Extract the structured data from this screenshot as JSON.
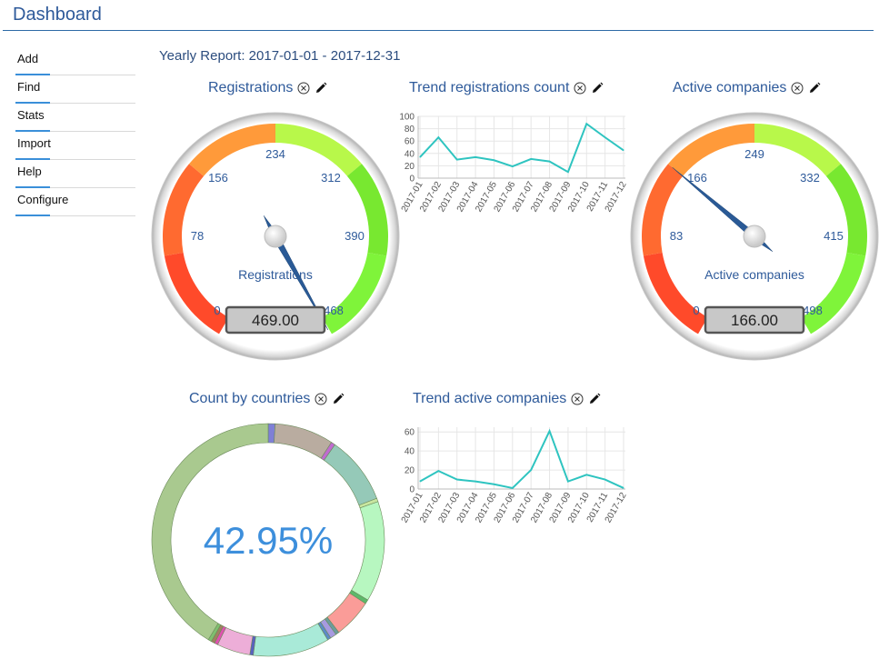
{
  "header": {
    "title": "Dashboard"
  },
  "sidebar": {
    "items": [
      {
        "label": "Add"
      },
      {
        "label": "Find"
      },
      {
        "label": "Stats"
      },
      {
        "label": "Import"
      },
      {
        "label": "Help"
      },
      {
        "label": "Configure"
      }
    ]
  },
  "report": {
    "title": "Yearly Report: 2017-01-01 - 2017-12-31"
  },
  "widgets": {
    "registrations": {
      "title": "Registrations",
      "gauge_label": "Registrations"
    },
    "trend_registrations": {
      "title": "Trend registrations count"
    },
    "active_companies": {
      "title": "Active companies",
      "gauge_label": "Active companies"
    },
    "count_by_countries": {
      "title": "Count by countries"
    },
    "trend_active": {
      "title": "Trend active companies"
    }
  },
  "icons": {
    "close": "close-circle-icon",
    "edit": "pencil-icon"
  },
  "colors": {
    "accent": "#3a8fd9",
    "trend_line": "#2ec4c0",
    "donut_text": "#3d8fdc"
  },
  "chart_data": [
    {
      "id": "registrations-gauge",
      "type": "gauge",
      "value": 469,
      "value_display": "469.00",
      "min": 0,
      "max": 468,
      "tick_labels": [
        "0",
        "78",
        "156",
        "234",
        "312",
        "390",
        "468"
      ],
      "label": "Registrations"
    },
    {
      "id": "trend-registrations",
      "type": "line",
      "x": [
        "2017-01",
        "2017-02",
        "2017-03",
        "2017-04",
        "2017-05",
        "2017-06",
        "2017-07",
        "2017-08",
        "2017-09",
        "2017-10",
        "2017-11",
        "2017-12"
      ],
      "y": [
        34,
        66,
        30,
        34,
        29,
        19,
        31,
        27,
        10,
        88,
        66,
        45
      ],
      "ylim": [
        0,
        100
      ],
      "yticks": [
        0,
        20,
        40,
        60,
        80,
        100
      ]
    },
    {
      "id": "active-companies-gauge",
      "type": "gauge",
      "value": 166,
      "value_display": "166.00",
      "min": 0,
      "max": 498,
      "tick_labels": [
        "0",
        "83",
        "166",
        "249",
        "332",
        "415",
        "498"
      ],
      "label": "Active companies"
    },
    {
      "id": "count-by-countries",
      "type": "pie",
      "center_text": "42.95%",
      "slices": [
        {
          "value": 1.0,
          "color": "#7f7fd6"
        },
        {
          "value": 8.5,
          "color": "#b9aca0"
        },
        {
          "value": 0.6,
          "color": "#c06bd0"
        },
        {
          "value": 9.8,
          "color": "#95c9b8"
        },
        {
          "value": 0.5,
          "color": "#c8e6a0"
        },
        {
          "value": 14.5,
          "color": "#b7f7c0"
        },
        {
          "value": 0.6,
          "color": "#5db86a"
        },
        {
          "value": 5.6,
          "color": "#fa9c98"
        },
        {
          "value": 0.5,
          "color": "#6b9c9e"
        },
        {
          "value": 0.9,
          "color": "#a79ae0"
        },
        {
          "value": 0.5,
          "color": "#5c8ac8"
        },
        {
          "value": 11.0,
          "color": "#a9ead8"
        },
        {
          "value": 0.5,
          "color": "#5860c0"
        },
        {
          "value": 4.8,
          "color": "#edaed8"
        },
        {
          "value": 0.5,
          "color": "#e050b0"
        },
        {
          "value": 0.5,
          "color": "#a08060"
        },
        {
          "value": 0.5,
          "color": "#7fbf6f"
        },
        {
          "value": 42.95,
          "color": "#a9c98f"
        }
      ]
    },
    {
      "id": "trend-active",
      "type": "line",
      "x": [
        "2017-01",
        "2017-02",
        "2017-03",
        "2017-04",
        "2017-05",
        "2017-06",
        "2017-07",
        "2017-08",
        "2017-09",
        "2017-10",
        "2017-11",
        "2017-12"
      ],
      "y": [
        8,
        19,
        10,
        8,
        5,
        1,
        20,
        61,
        8,
        15,
        10,
        1
      ],
      "ylim": [
        0,
        65
      ],
      "yticks": [
        0,
        20,
        40,
        60
      ]
    }
  ]
}
